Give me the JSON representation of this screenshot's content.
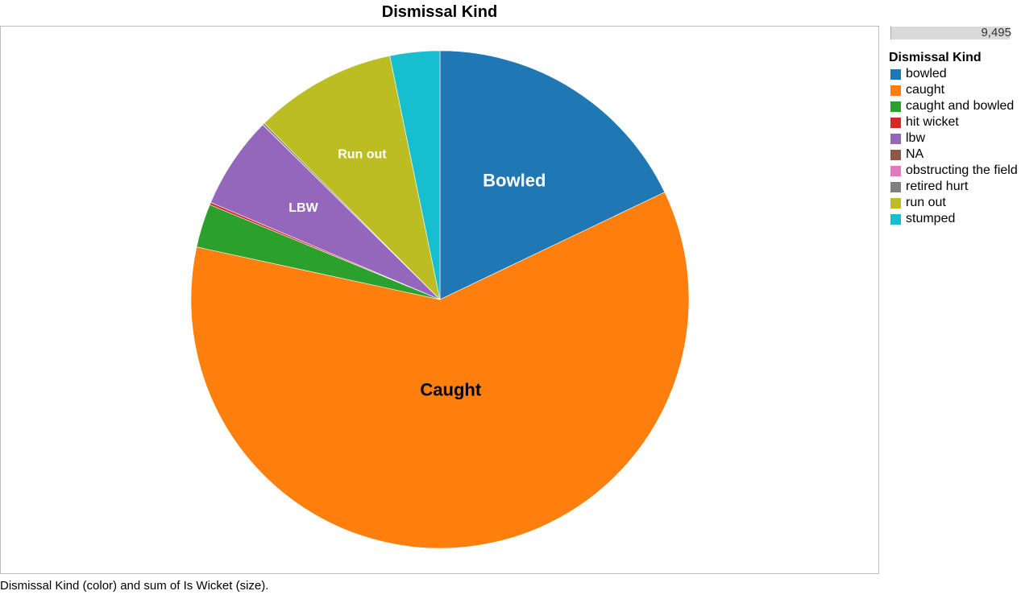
{
  "chart_data": {
    "type": "pie",
    "title": "Dismissal Kind",
    "legend_title": "Dismissal Kind",
    "legend_placement": "right",
    "size_legend_value": "9,495",
    "caption": "Dismissal Kind (color) and sum of Is Wicket (size).",
    "slices": [
      {
        "category": "bowled",
        "value": 1700,
        "color": "#1f77b4",
        "label": "Bowled",
        "label_color": "#ffffff"
      },
      {
        "category": "caught",
        "value": 5743,
        "color": "#ff7f0e",
        "label": "Caught",
        "label_color": "#000000"
      },
      {
        "category": "caught and bowled",
        "value": 269,
        "color": "#2ca02c",
        "label": "",
        "label_color": "#ffffff"
      },
      {
        "category": "hit wicket",
        "value": 15,
        "color": "#d62728",
        "label": "",
        "label_color": "#ffffff"
      },
      {
        "category": "lbw",
        "value": 571,
        "color": "#9467bd",
        "label": "LBW",
        "label_color": "#ffffff"
      },
      {
        "category": "NA",
        "value": 0,
        "color": "#8c564b",
        "label": "",
        "label_color": "#ffffff"
      },
      {
        "category": "obstructing the field",
        "value": 1,
        "color": "#e377c2",
        "label": "",
        "label_color": "#ffffff"
      },
      {
        "category": "retired hurt",
        "value": 12,
        "color": "#7f7f7f",
        "label": "",
        "label_color": "#ffffff"
      },
      {
        "category": "run out",
        "value": 877,
        "color": "#bcbd22",
        "label": "Run out",
        "label_color": "#ffffff"
      },
      {
        "category": "stumped",
        "value": 307,
        "color": "#17becf",
        "label": "",
        "label_color": "#ffffff"
      }
    ]
  }
}
